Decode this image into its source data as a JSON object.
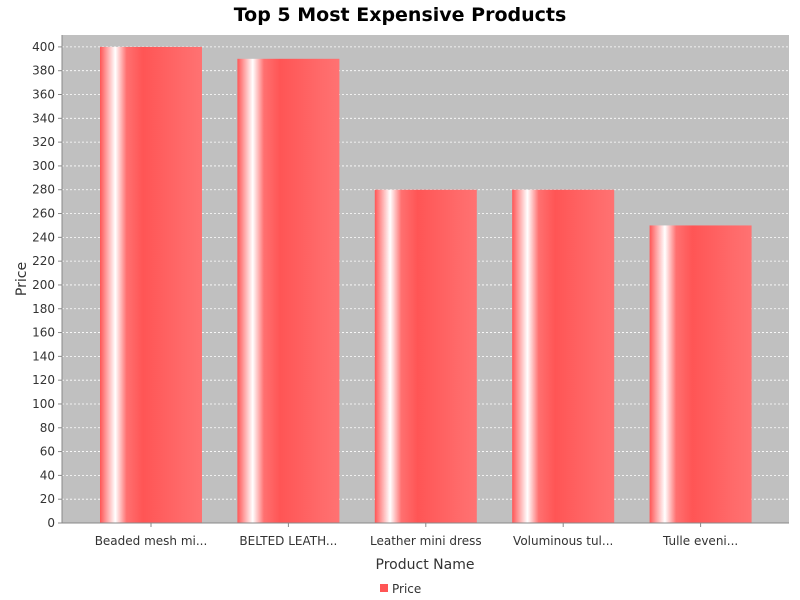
{
  "chart_data": {
    "type": "bar",
    "title": "Top 5 Most Expensive Products",
    "xlabel": "Product Name",
    "ylabel": "Price",
    "categories": [
      "Beaded mesh mi...",
      "BELTED LEATH...",
      "Leather mini dress",
      "Voluminous tul...",
      "Tulle eveni..."
    ],
    "series": [
      {
        "name": "Price",
        "values": [
          400,
          390,
          280,
          280,
          250
        ]
      }
    ],
    "ylim": [
      0,
      410
    ],
    "yticks": [
      0,
      20,
      40,
      60,
      80,
      100,
      120,
      140,
      160,
      180,
      200,
      220,
      240,
      260,
      280,
      300,
      320,
      340,
      360,
      380,
      400
    ],
    "grid": true,
    "legend": "bottom",
    "colors": {
      "bar": "#ff5555",
      "plot_background": "#c0c0c0",
      "gridline": "#ffffff"
    }
  }
}
